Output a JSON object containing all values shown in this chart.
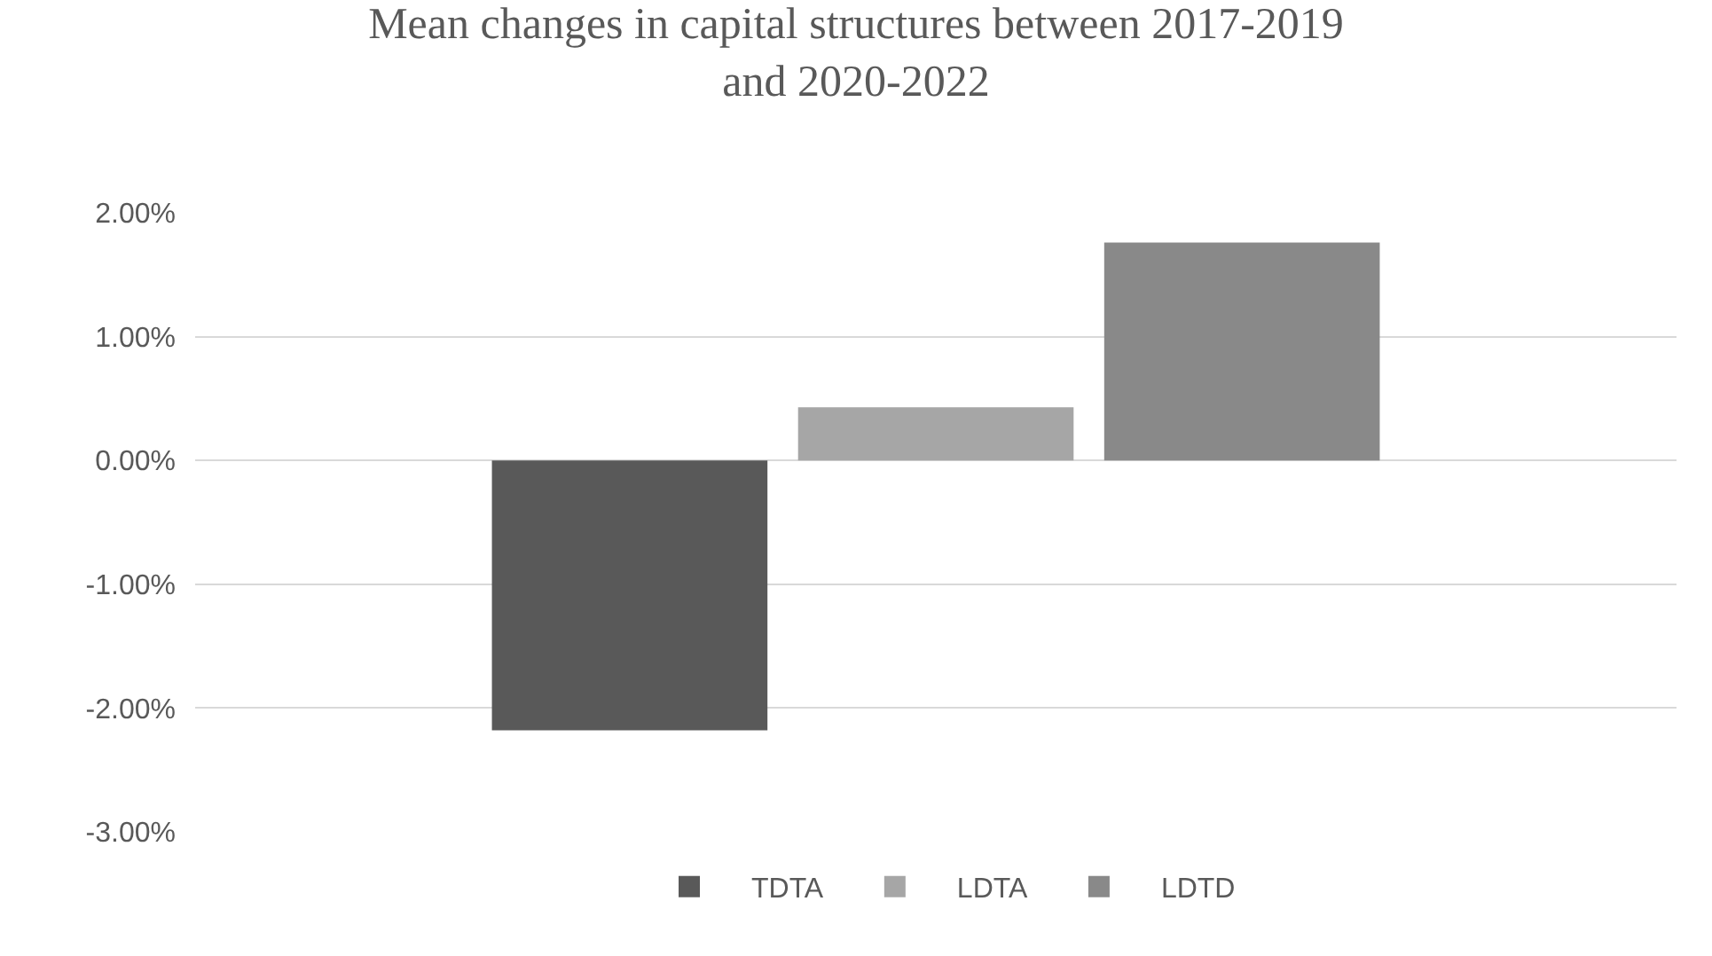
{
  "chart_data": {
    "type": "bar",
    "title": "Mean changes in capital structures between 2017-2019\nand 2020-2022",
    "categories": [
      null
    ],
    "series": [
      {
        "name": "TDTA",
        "color": "#595959",
        "values": [
          -2.18
        ]
      },
      {
        "name": "LDTA",
        "color": "#a6a6a6",
        "values": [
          0.43
        ]
      },
      {
        "name": "LDTD",
        "color": "#898989",
        "values": [
          1.76
        ]
      }
    ],
    "ylim": [
      -3,
      2
    ],
    "yticks": [
      {
        "value": 2,
        "label": "2.00%"
      },
      {
        "value": 1,
        "label": "1.00%"
      },
      {
        "value": 0,
        "label": "0.00%"
      },
      {
        "value": -1,
        "label": "-1.00%"
      },
      {
        "value": -2,
        "label": "-2.00%"
      },
      {
        "value": -3,
        "label": "-3.00%"
      }
    ],
    "grid": "y",
    "legend": "bottom"
  }
}
